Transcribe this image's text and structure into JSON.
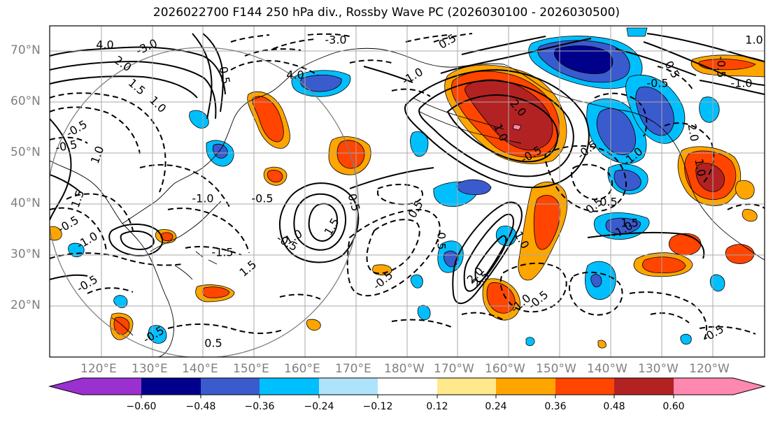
{
  "title": "2026022700 F144 250 hPa div., Rossby Wave PC (2026030100 - 2026030500)",
  "colors": {
    "neg_extreme": "#9b30d0",
    "neg_060": "#00008b",
    "neg_048": "#3a5bcd",
    "neg_036": "#00bfff",
    "neg_024": "#aee4fb",
    "neutral": "#ffffff",
    "pos_012": "#ffe98a",
    "pos_024": "#ffa500",
    "pos_036": "#ff4500",
    "pos_048": "#b22222",
    "pos_extreme": "#ff88b0",
    "grid": "#a8a8a8",
    "axis_label": "#808080",
    "contour": "#000000"
  },
  "axes": {
    "lat_labels": [
      "70°N",
      "60°N",
      "50°N",
      "40°N",
      "30°N",
      "20°N"
    ],
    "lon_labels": [
      "120°E",
      "130°E",
      "140°E",
      "150°E",
      "160°E",
      "170°E",
      "180°W",
      "170°W",
      "160°W",
      "150°W",
      "140°W",
      "130°W",
      "120°W"
    ]
  },
  "colorbar": {
    "ticks": [
      "−0.60",
      "−0.48",
      "−0.36",
      "−0.24",
      "−0.12",
      "0.12",
      "0.24",
      "0.36",
      "0.48",
      "0.60"
    ]
  },
  "contour_labels": [
    "4.0",
    "-3.0",
    "2.0",
    "-3.0",
    "1.5",
    "1.0",
    "0.5",
    "-0.5",
    "1.0",
    "1.5",
    "-1.0",
    "-0.5",
    "-1.0",
    "-1.5",
    "4.0",
    "-0.5",
    "1.5",
    "0.5",
    "0.5",
    "1.5",
    "1.0",
    "-1.0",
    "0.5",
    "-0.5",
    "1.0",
    "2.0",
    "-0.5",
    "0.5",
    "1.5",
    "2.0",
    "2.5",
    "1.0",
    "0.5",
    "-0.5",
    "-0.5",
    "-1.0",
    "-1.0",
    "0.5",
    "-0.5",
    "2.0",
    "1.0",
    "-1.0",
    "1.0",
    "-0.5",
    "-0.5",
    "0.5",
    "-1.0",
    "0.5",
    "-0.5",
    "-0.5",
    "-0.5",
    "-0.5"
  ]
}
